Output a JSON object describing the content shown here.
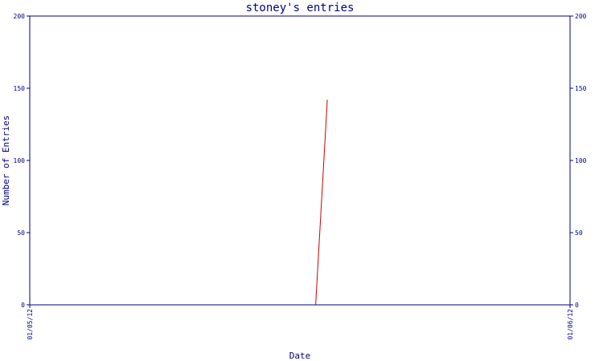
{
  "chart_data": {
    "type": "line",
    "title": "stoney's entries",
    "xlabel": "Date",
    "ylabel": "Number of Entries",
    "x_tick_labels": [
      "01/05/12",
      "01/06/12"
    ],
    "y_ticks": [
      0,
      50,
      100,
      150,
      200
    ],
    "ylim": [
      0,
      200
    ],
    "xlim": [
      "2012-01-05",
      "2012-01-06"
    ],
    "grid": false,
    "legend": "none",
    "series": [
      {
        "x": [
          "2012-01-05 12:42",
          "2012-01-05 13:13"
        ],
        "y": [
          0,
          142
        ]
      }
    ],
    "colors": {
      "axis": "#000080",
      "series": "#cc0000",
      "text": "#000080",
      "background": "#ffffff"
    }
  }
}
